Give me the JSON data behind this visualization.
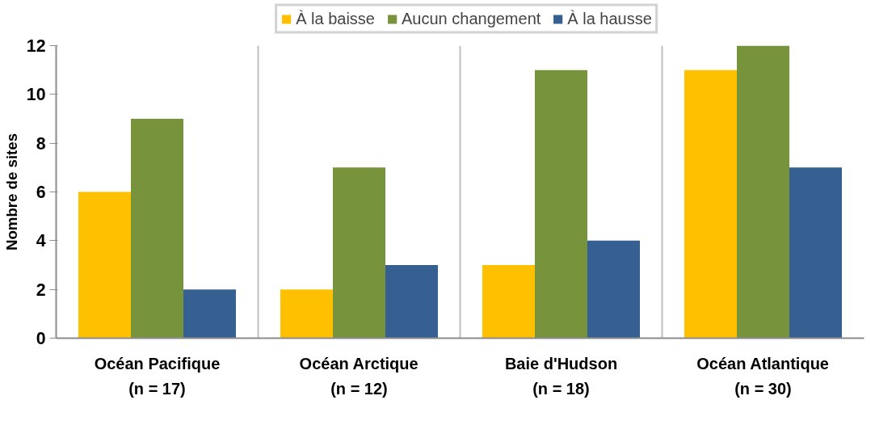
{
  "chart_data": {
    "type": "bar",
    "ylabel": "Nombre de sites",
    "categories": [
      "Océan Pacifique\n(n = 17)",
      "Océan Arctique\n(n = 12)",
      "Baie d'Hudson\n(n = 18)",
      "Océan Atlantique\n(n = 30)"
    ],
    "series": [
      {
        "name": "À la baisse",
        "color": "#ffc000",
        "values": [
          6,
          2,
          3,
          11
        ]
      },
      {
        "name": "Aucun changement",
        "color": "#77933c",
        "values": [
          9,
          7,
          11,
          12
        ]
      },
      {
        "name": "À la hausse",
        "color": "#376092",
        "values": [
          2,
          3,
          4,
          7
        ]
      }
    ],
    "ylim": [
      0,
      12
    ],
    "yticks": [
      0,
      2,
      4,
      6,
      8,
      10,
      12
    ],
    "grid": "x",
    "legend": "top"
  }
}
